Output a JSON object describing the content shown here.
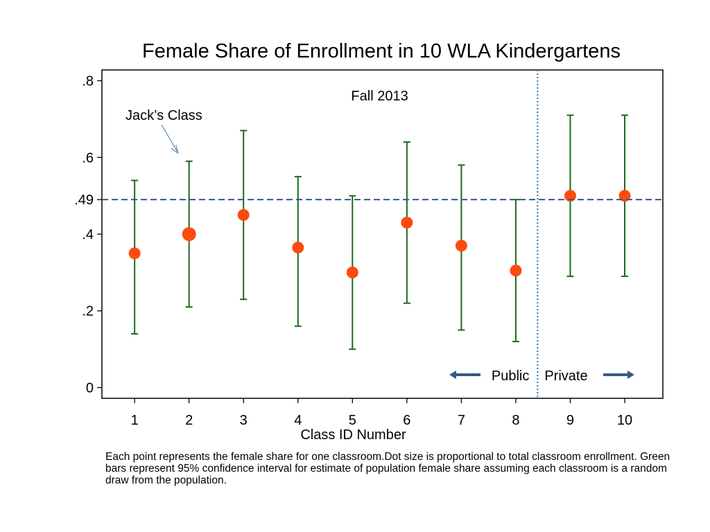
{
  "chart_data": {
    "type": "scatter",
    "title": "Female Share of Enrollment in 10 WLA Kindergartens",
    "xlabel": "Class ID Number",
    "ylabel": "",
    "x_ticks": [
      "1",
      "2",
      "3",
      "4",
      "5",
      "6",
      "7",
      "8",
      "9",
      "10"
    ],
    "y_ticks": [
      {
        "value": 0,
        "label": "0"
      },
      {
        "value": 0.2,
        "label": ".2"
      },
      {
        "value": 0.4,
        "label": ".4"
      },
      {
        "value": 0.49,
        "label": ".49"
      },
      {
        "value": 0.6,
        "label": ".6"
      },
      {
        "value": 0.8,
        "label": ".8"
      }
    ],
    "ylim": [
      -0.028,
      0.828
    ],
    "xlim": [
      0.4,
      10.7
    ],
    "grid": false,
    "reference_line_y": 0.49,
    "divider_x": 8.4,
    "points": [
      {
        "x": 1,
        "y": 0.35,
        "ci_low": 0.14,
        "ci_high": 0.54,
        "enrollment_rel": 0.9
      },
      {
        "x": 2,
        "y": 0.4,
        "ci_low": 0.21,
        "ci_high": 0.59,
        "enrollment_rel": 1.0
      },
      {
        "x": 3,
        "y": 0.45,
        "ci_low": 0.23,
        "ci_high": 0.67,
        "enrollment_rel": 0.9
      },
      {
        "x": 4,
        "y": 0.365,
        "ci_low": 0.16,
        "ci_high": 0.55,
        "enrollment_rel": 0.9
      },
      {
        "x": 5,
        "y": 0.3,
        "ci_low": 0.1,
        "ci_high": 0.5,
        "enrollment_rel": 0.9
      },
      {
        "x": 6,
        "y": 0.43,
        "ci_low": 0.22,
        "ci_high": 0.64,
        "enrollment_rel": 0.9
      },
      {
        "x": 7,
        "y": 0.37,
        "ci_low": 0.15,
        "ci_high": 0.58,
        "enrollment_rel": 0.9
      },
      {
        "x": 8,
        "y": 0.305,
        "ci_low": 0.12,
        "ci_high": 0.49,
        "enrollment_rel": 0.9
      },
      {
        "x": 9,
        "y": 0.5,
        "ci_low": 0.29,
        "ci_high": 0.71,
        "enrollment_rel": 0.9
      },
      {
        "x": 10,
        "y": 0.5,
        "ci_low": 0.29,
        "ci_high": 0.71,
        "enrollment_rel": 0.9
      }
    ],
    "annotations": {
      "period": "Fall 2013",
      "highlight_label": "Jack’s Class",
      "highlight_class": 2,
      "public_label": "Public",
      "private_label": "Private"
    },
    "colors": {
      "point": "#FF4A0D",
      "ci_bar": "#1A6B1A",
      "reference_line": "#345A82",
      "divider": "#3C7DB5",
      "arrow": "#345A82",
      "callout_arrow": "#5B8BB8"
    }
  },
  "caption": "Each point represents the female share for one classroom.Dot size is proportional to total classroom enrollment. Green bars represent 95% confidence interval for estimate of population female share assuming each classroom is a random draw from the population."
}
